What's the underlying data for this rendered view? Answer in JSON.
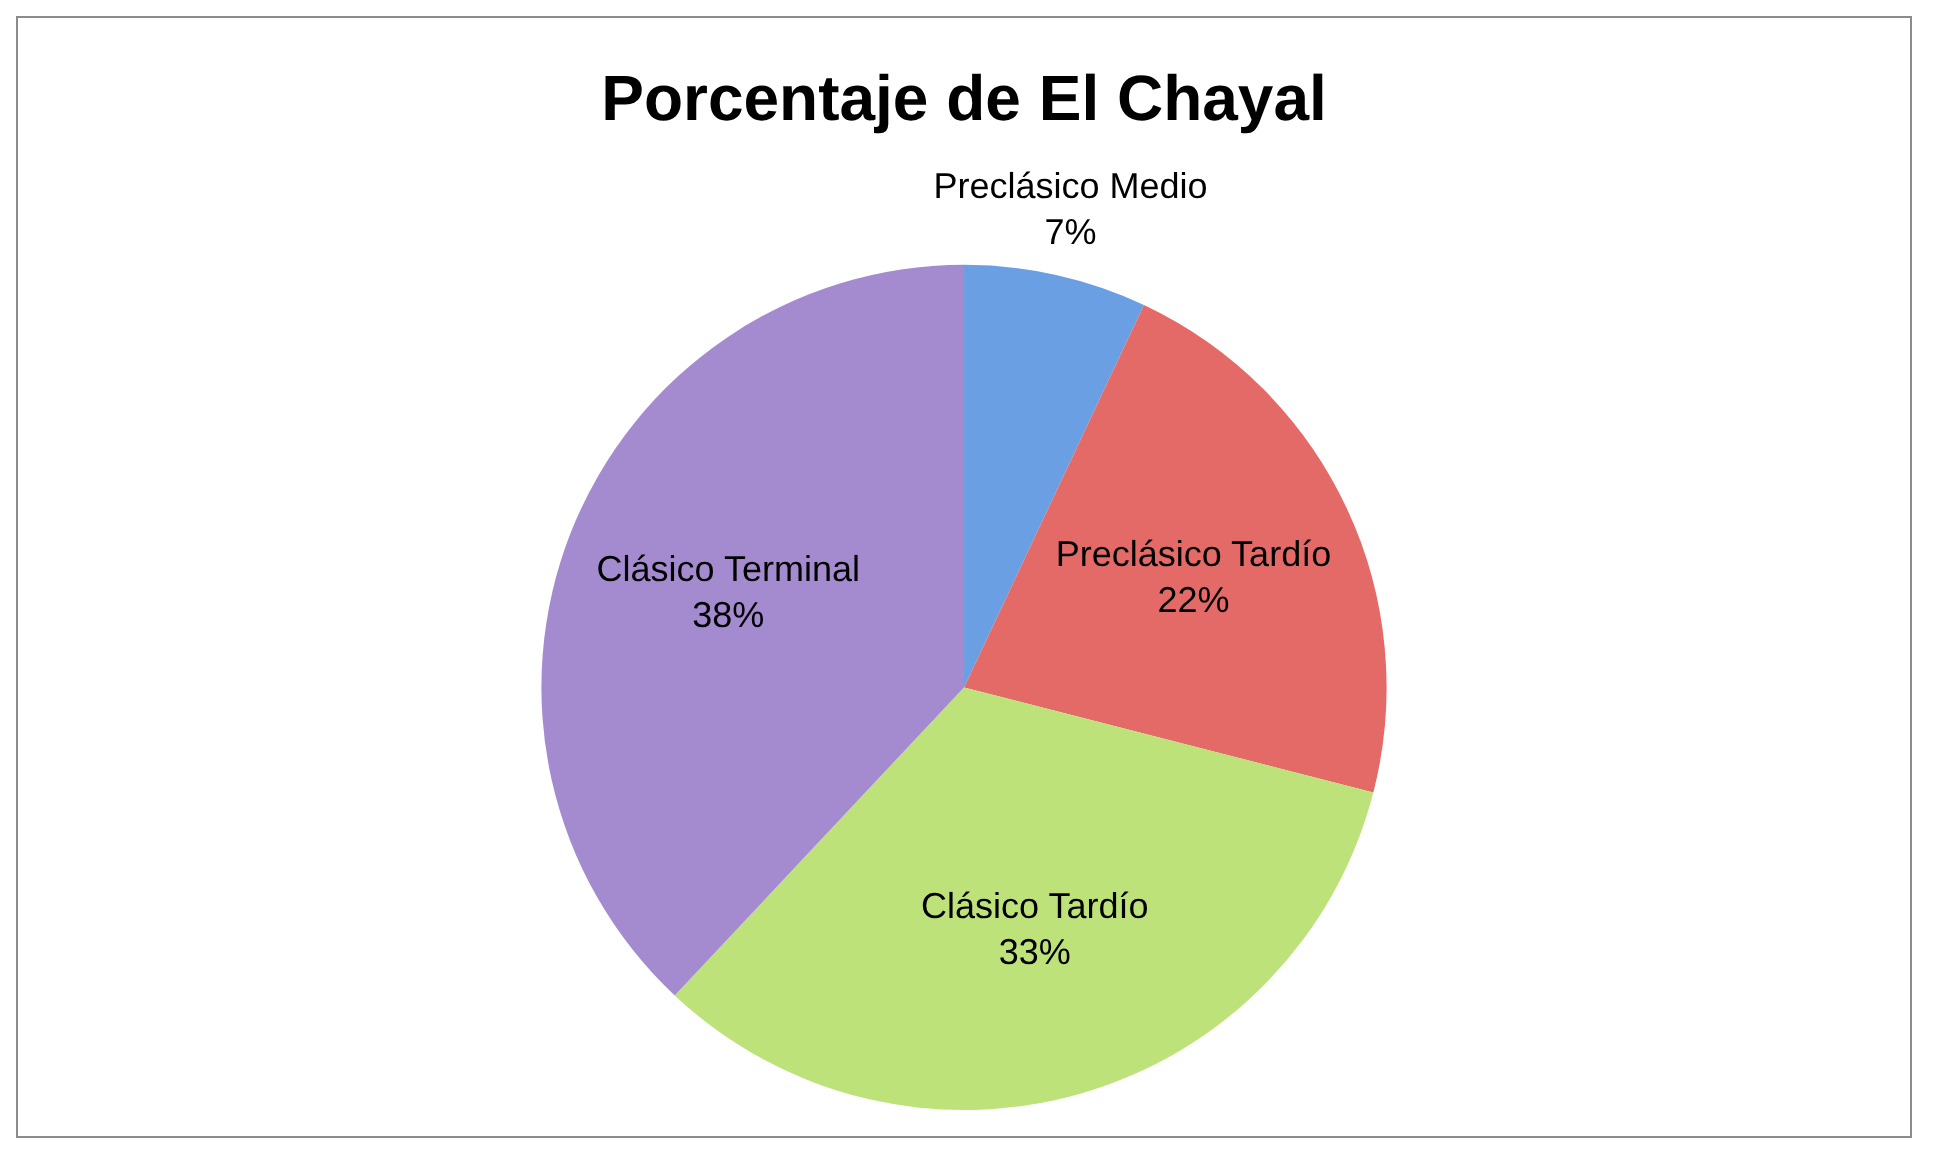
{
  "chart_data": {
    "type": "pie",
    "title": "Porcentaje de El Chayal",
    "categories": [
      "Preclásico Medio",
      "Preclásico Tardío",
      "Clásico Tardío",
      "Clásico Terminal"
    ],
    "values": [
      7,
      22,
      33,
      38
    ],
    "colors": [
      "#6a9fe3",
      "#e36a66",
      "#bde27a",
      "#a48bd0"
    ],
    "value_labels": [
      "7%",
      "22%",
      "33%",
      "38%"
    ],
    "legend": false
  }
}
